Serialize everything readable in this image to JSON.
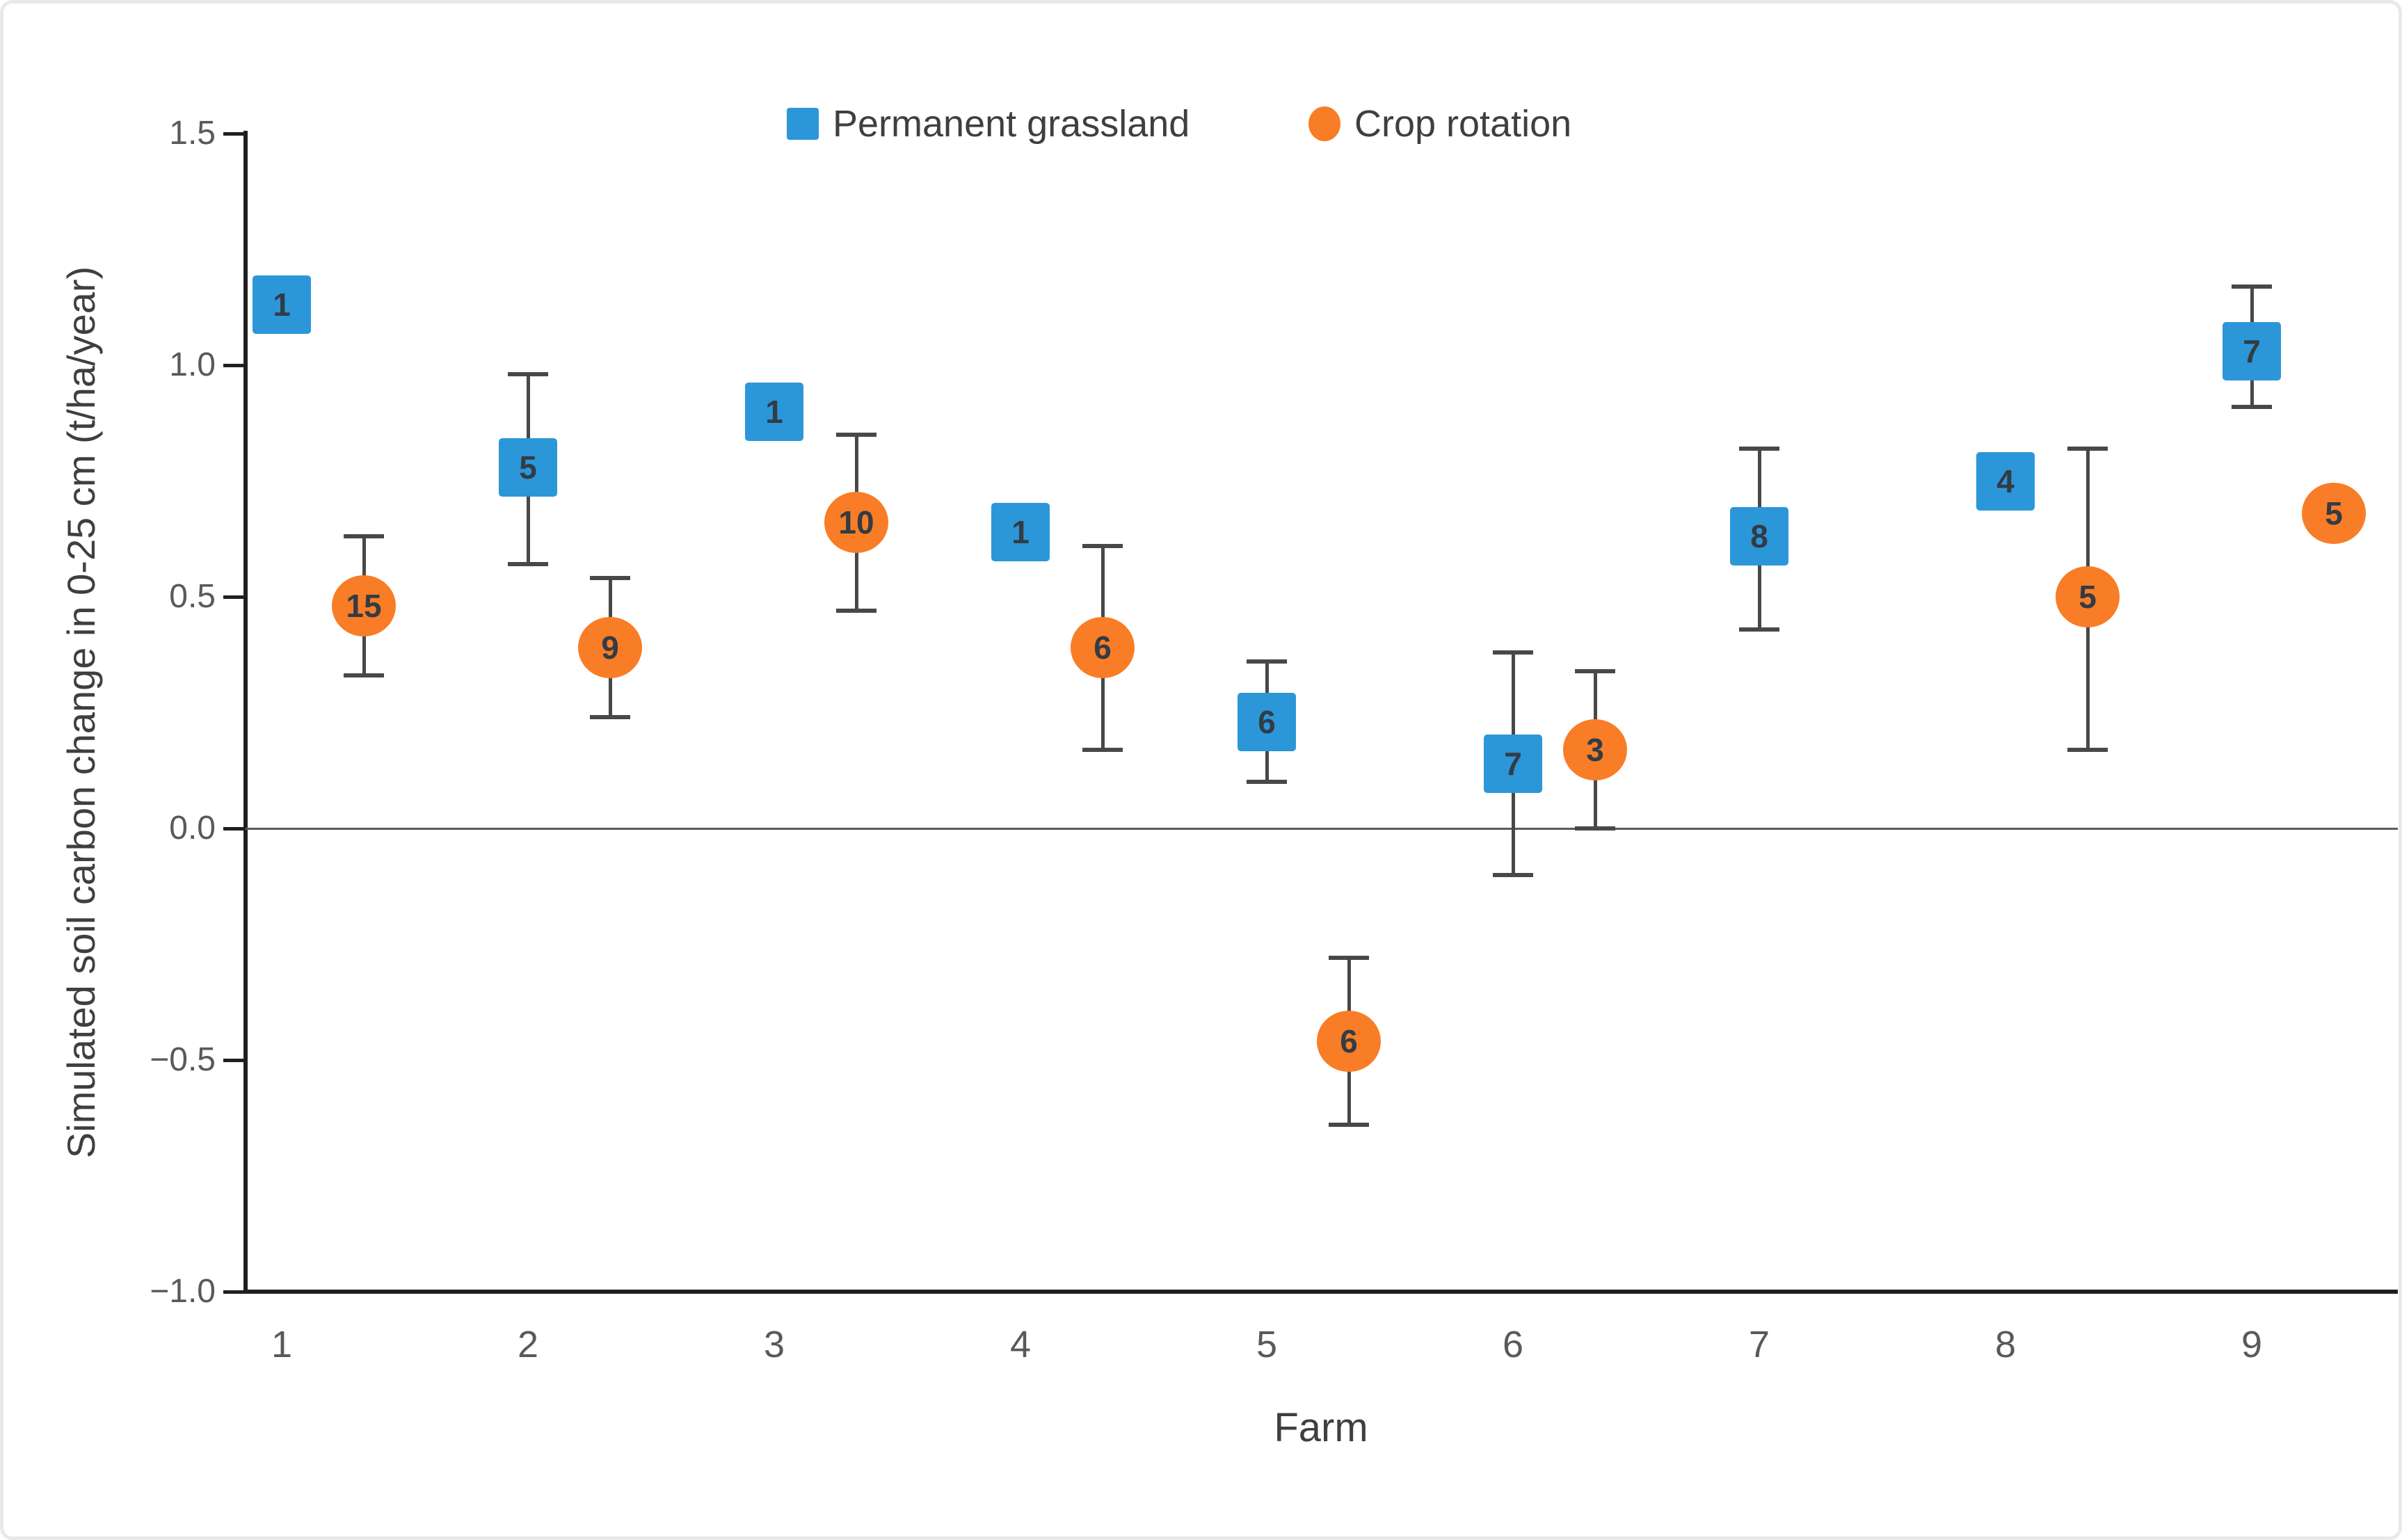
{
  "chart_data": {
    "type": "scatter",
    "title": "",
    "xlabel": "Farm",
    "ylabel": "Simulated soil carbon change in 0-25 cm (t/ha/year)",
    "categories": [
      "1",
      "2",
      "3",
      "4",
      "5",
      "6",
      "7",
      "8",
      "9"
    ],
    "ylim": [
      -1.0,
      1.5
    ],
    "ytick_labels": [
      "1.5",
      "1.0",
      "0.5",
      "0.0",
      "−0.5",
      "−1.0"
    ],
    "ytick_values": [
      1.5,
      1.0,
      0.5,
      0.0,
      -0.5,
      -1.0
    ],
    "grid": "horizontal line at zero only",
    "legend_position": "top-center",
    "series": [
      {
        "name": "Permanent grassland",
        "marker": "square",
        "color": "#2B97D8",
        "points": [
          {
            "farm": "1",
            "value": 1.13,
            "label": "1",
            "err_lo": null,
            "err_hi": null
          },
          {
            "farm": "2",
            "value": 0.78,
            "label": "5",
            "err_lo": 0.57,
            "err_hi": 0.98
          },
          {
            "farm": "3",
            "value": 0.9,
            "label": "1",
            "err_lo": null,
            "err_hi": null
          },
          {
            "farm": "4",
            "value": 0.64,
            "label": "1",
            "err_lo": null,
            "err_hi": null
          },
          {
            "farm": "5",
            "value": 0.23,
            "label": "6",
            "err_lo": 0.1,
            "err_hi": 0.36
          },
          {
            "farm": "6",
            "value": 0.14,
            "label": "7",
            "err_lo": -0.1,
            "err_hi": 0.38
          },
          {
            "farm": "7",
            "value": 0.63,
            "label": "8",
            "err_lo": 0.43,
            "err_hi": 0.82
          },
          {
            "farm": "8",
            "value": 0.75,
            "label": "4",
            "err_lo": null,
            "err_hi": null
          },
          {
            "farm": "9",
            "value": 1.03,
            "label": "7",
            "err_lo": 0.91,
            "err_hi": 1.17
          }
        ]
      },
      {
        "name": "Crop rotation",
        "marker": "circle",
        "color": "#F87D26",
        "points": [
          {
            "farm": "1",
            "value": 0.48,
            "label": "15",
            "err_lo": 0.33,
            "err_hi": 0.63
          },
          {
            "farm": "2",
            "value": 0.39,
            "label": "9",
            "err_lo": 0.24,
            "err_hi": 0.54
          },
          {
            "farm": "3",
            "value": 0.66,
            "label": "10",
            "err_lo": 0.47,
            "err_hi": 0.85
          },
          {
            "farm": "4",
            "value": 0.39,
            "label": "6",
            "err_lo": 0.17,
            "err_hi": 0.61
          },
          {
            "farm": "5",
            "value": -0.46,
            "label": "6",
            "err_lo": -0.64,
            "err_hi": -0.28
          },
          {
            "farm": "6",
            "value": 0.17,
            "label": "3",
            "err_lo": 0.0,
            "err_hi": 0.34
          },
          {
            "farm": "8",
            "value": 0.5,
            "label": "5",
            "err_lo": 0.17,
            "err_hi": 0.82
          },
          {
            "farm": "9",
            "value": 0.68,
            "label": "5",
            "err_lo": null,
            "err_hi": null
          }
        ]
      }
    ]
  },
  "colors": {
    "permanent_grassland": "#2B97D8",
    "crop_rotation": "#F87D26",
    "axis_line": "#1f1f1f",
    "zero_line": "#5a5a5a",
    "error_bar": "#484848",
    "tick_label": "#595959",
    "axis_title": "#3f3f3f",
    "marker_label": "#333b45",
    "figure_border": "#e9e9e9"
  }
}
